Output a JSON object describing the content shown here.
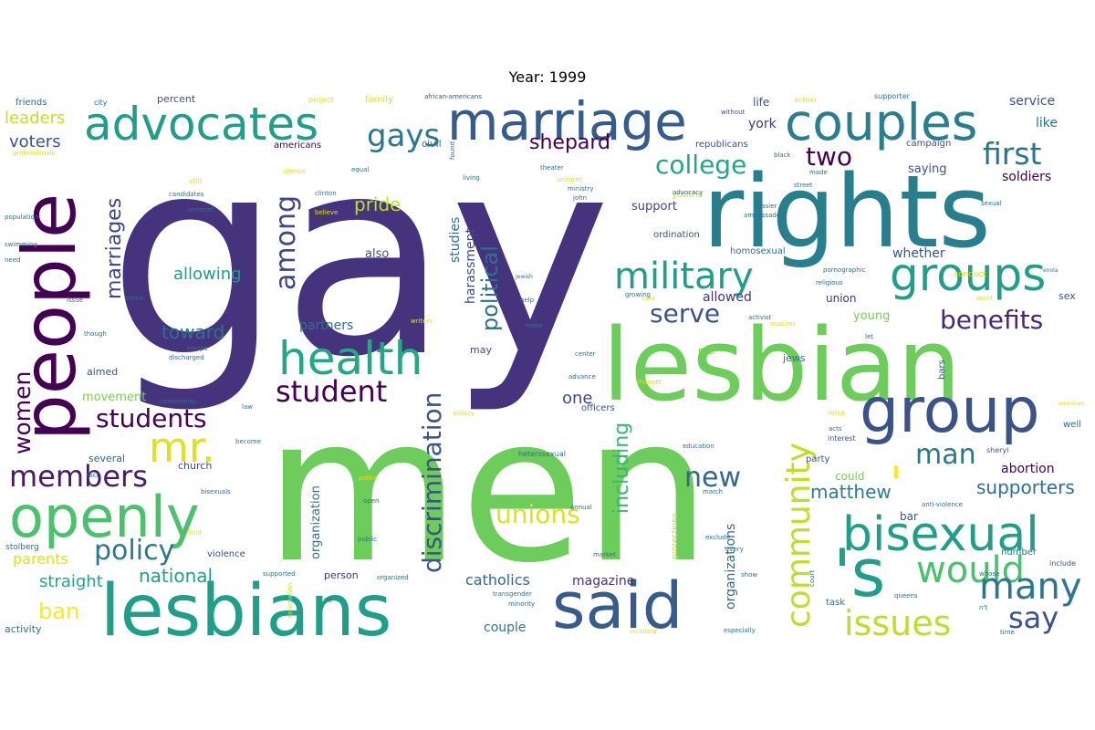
{
  "figure": {
    "title": "Year: 1999"
  },
  "word_cloud": {
    "words": [
      {
        "text": "gay",
        "color": "#46337e"
      },
      {
        "text": "men",
        "color": "#6ccd5a"
      },
      {
        "text": "rights",
        "color": "#277f8e"
      },
      {
        "text": "lesbian",
        "color": "#6ccd5a"
      },
      {
        "text": "people",
        "color": "#440154"
      },
      {
        "text": "lesbians",
        "color": "#1f9e89"
      },
      {
        "text": "marriage",
        "color": "#365c8d"
      },
      {
        "text": "couples",
        "color": "#277f8e"
      },
      {
        "text": "advocates",
        "color": "#1f9e89"
      },
      {
        "text": "said",
        "color": "#365c8d"
      },
      {
        "text": "group",
        "color": "#3b528b"
      },
      {
        "text": "openly",
        "color": "#4ac16d"
      },
      {
        "text": "health",
        "color": "#22a884"
      },
      {
        "text": "'s",
        "color": "#1f9e89"
      },
      {
        "text": "bisexual",
        "color": "#1f9e89"
      },
      {
        "text": "groups",
        "color": "#1f9e89"
      },
      {
        "text": "military",
        "color": "#1f9e89"
      },
      {
        "text": "community",
        "color": "#bddf26"
      },
      {
        "text": "mr.",
        "color": "#dde318"
      },
      {
        "text": "'",
        "color": "#fde725"
      },
      {
        "text": "gays",
        "color": "#2a788e"
      },
      {
        "text": "student",
        "color": "#440154"
      },
      {
        "text": "members",
        "color": "#481a6c"
      },
      {
        "text": "would",
        "color": "#4ac16d"
      },
      {
        "text": "many",
        "color": "#2a788e"
      },
      {
        "text": "issues",
        "color": "#bddf26"
      },
      {
        "text": "first",
        "color": "#2c718e"
      },
      {
        "text": "college",
        "color": "#22a884"
      },
      {
        "text": "policy",
        "color": "#2a788e"
      },
      {
        "text": "among",
        "color": "#404688"
      },
      {
        "text": "discrimination",
        "color": "#3b528b"
      },
      {
        "text": "new",
        "color": "#31688e"
      },
      {
        "text": "students",
        "color": "#440154"
      },
      {
        "text": "women",
        "color": "#440154"
      },
      {
        "text": "marriages",
        "color": "#414487"
      },
      {
        "text": "say",
        "color": "#3b528b"
      },
      {
        "text": "benefits",
        "color": "#482878"
      },
      {
        "text": "serve",
        "color": "#3b528b"
      },
      {
        "text": "man",
        "color": "#2a788e"
      },
      {
        "text": "two",
        "color": "#440154"
      },
      {
        "text": "unions",
        "color": "#dde318"
      },
      {
        "text": "political",
        "color": "#2c718e"
      },
      {
        "text": "including",
        "color": "#35b779"
      },
      {
        "text": "shepard",
        "color": "#440154"
      },
      {
        "text": "supporters",
        "color": "#2c718e"
      },
      {
        "text": "matthew",
        "color": "#277f8e"
      },
      {
        "text": "ban",
        "color": "#fde725"
      },
      {
        "text": "pride",
        "color": "#bddf26"
      },
      {
        "text": "toward",
        "color": "#2c718e"
      },
      {
        "text": "national",
        "color": "#1fa187"
      },
      {
        "text": "straight",
        "color": "#22a884"
      },
      {
        "text": "allowing",
        "color": "#1f9e89"
      },
      {
        "text": "leaders",
        "color": "#c8e020"
      },
      {
        "text": "voters",
        "color": "#3b528b"
      },
      {
        "text": "catholics",
        "color": "#31688e"
      },
      {
        "text": "parents",
        "color": "#dde318"
      },
      {
        "text": "one",
        "color": "#3e4a89"
      },
      {
        "text": "studies",
        "color": "#2c728e"
      },
      {
        "text": "harassment",
        "color": "#3e4a89"
      },
      {
        "text": "abortion",
        "color": "#440154"
      },
      {
        "text": "organizations",
        "color": "#31688e"
      },
      {
        "text": "organization",
        "color": "#2c728e"
      },
      {
        "text": "magazine",
        "color": "#46337e"
      },
      {
        "text": "partners",
        "color": "#2c728e"
      },
      {
        "text": "allowed",
        "color": "#46337e"
      },
      {
        "text": "couple",
        "color": "#2a788e"
      },
      {
        "text": "movement",
        "color": "#7ad151"
      },
      {
        "text": "whether",
        "color": "#3b528b"
      },
      {
        "text": "service",
        "color": "#3b528b"
      },
      {
        "text": "york",
        "color": "#46337e"
      },
      {
        "text": "like",
        "color": "#2c728e"
      },
      {
        "text": "soldiers",
        "color": "#440154"
      },
      {
        "text": "saying",
        "color": "#3b528b"
      },
      {
        "text": "support",
        "color": "#404688"
      },
      {
        "text": "also",
        "color": "#3b528b"
      },
      {
        "text": "young",
        "color": "#7ad151"
      },
      {
        "text": "union",
        "color": "#46337e"
      },
      {
        "text": "could",
        "color": "#7ad151"
      },
      {
        "text": "bar",
        "color": "#3b528b"
      },
      {
        "text": "activity",
        "color": "#2c728e"
      },
      {
        "text": "aimed",
        "color": "#3b528b"
      },
      {
        "text": "several",
        "color": "#31688e"
      },
      {
        "text": "church",
        "color": "#3b528b"
      },
      {
        "text": "percent",
        "color": "#3b528b"
      },
      {
        "text": "friends",
        "color": "#2c728e"
      },
      {
        "text": "civil",
        "color": "#2c728e"
      },
      {
        "text": "may",
        "color": "#3b528b"
      },
      {
        "text": "americans",
        "color": "#440154"
      },
      {
        "text": "life",
        "color": "#3b528b"
      },
      {
        "text": "ms.",
        "color": "#7ad151"
      },
      {
        "text": "jews",
        "color": "#2c718e"
      },
      {
        "text": "sex",
        "color": "#3b528b"
      },
      {
        "text": "task",
        "color": "#2c728e"
      },
      {
        "text": "party",
        "color": "#3b528b"
      },
      {
        "text": "number",
        "color": "#2c728e"
      },
      {
        "text": "well",
        "color": "#31688e"
      },
      {
        "text": "bars",
        "color": "#3b528b"
      },
      {
        "text": "officers",
        "color": "#3b528b"
      },
      {
        "text": "person",
        "color": "#46337e"
      },
      {
        "text": "republicans",
        "color": "#3b528b"
      },
      {
        "text": "campaign",
        "color": "#3b528b"
      },
      {
        "text": "ordination",
        "color": "#3b528b"
      },
      {
        "text": "homosexual",
        "color": "#2c728e"
      },
      {
        "text": "youths",
        "color": "#dde318"
      },
      {
        "text": "conduct",
        "color": "#dde318"
      },
      {
        "text": "heterosexual",
        "color": "#2c728e"
      },
      {
        "text": "family",
        "color": "#dde318"
      },
      {
        "text": "project",
        "color": "#dde318"
      },
      {
        "text": "action",
        "color": "#dde318"
      },
      {
        "text": "sheryl",
        "color": "#3b528b"
      },
      {
        "text": "interest",
        "color": "#3b528b"
      },
      {
        "text": "protections",
        "color": "#c8e020"
      },
      {
        "text": "include",
        "color": "#3b528b"
      },
      {
        "text": "fund",
        "color": "#dde318"
      },
      {
        "text": "stolberg",
        "color": "#2c728e"
      },
      {
        "text": "violence",
        "color": "#3b528b"
      },
      {
        "text": "city",
        "color": "#2c728e"
      },
      {
        "text": "supporter",
        "color": "#2c728e"
      },
      {
        "text": "without",
        "color": "#3b528b"
      },
      {
        "text": "african-americans",
        "color": "#3b528b"
      },
      {
        "text": "professionals",
        "color": "#dde318"
      },
      {
        "text": "still",
        "color": "#dde318"
      },
      {
        "text": "candidates",
        "color": "#2c728e"
      },
      {
        "text": "vermont",
        "color": "#2c728e"
      },
      {
        "text": "clinton",
        "color": "#2c728e"
      },
      {
        "text": "believe",
        "color": "#dde318"
      },
      {
        "text": "population",
        "color": "#2c728e"
      },
      {
        "text": "swimming",
        "color": "#2c728e"
      },
      {
        "text": "need",
        "color": "#2c728e"
      },
      {
        "text": "issue",
        "color": "#2c728e"
      },
      {
        "text": "come",
        "color": "#2c728e"
      },
      {
        "text": "though",
        "color": "#2c728e"
      },
      {
        "text": "writers",
        "color": "#dde318"
      },
      {
        "text": "troops",
        "color": "#2c728e"
      },
      {
        "text": "discharged",
        "color": "#2c728e"
      },
      {
        "text": "ceremonies",
        "color": "#2c728e"
      },
      {
        "text": "law",
        "color": "#2c728e"
      },
      {
        "text": "fact",
        "color": "#2c728e"
      },
      {
        "text": "become",
        "color": "#2c728e"
      },
      {
        "text": "bisexuals",
        "color": "#2c728e"
      },
      {
        "text": "police",
        "color": "#dde318"
      },
      {
        "text": "open",
        "color": "#2c728e"
      },
      {
        "text": "public",
        "color": "#2c728e"
      },
      {
        "text": "supported",
        "color": "#2c728e"
      },
      {
        "text": "organized",
        "color": "#2c728e"
      },
      {
        "text": "'re",
        "color": "#2c728e"
      },
      {
        "text": "association",
        "color": "#dde318"
      },
      {
        "text": "transgender",
        "color": "#2c728e"
      },
      {
        "text": "minority",
        "color": "#2c728e"
      },
      {
        "text": "market",
        "color": "#2c728e"
      },
      {
        "text": "included",
        "color": "#dde318"
      },
      {
        "text": "especially",
        "color": "#2c728e"
      },
      {
        "text": "show",
        "color": "#2c728e"
      },
      {
        "text": "court",
        "color": "#2c728e"
      },
      {
        "text": "queens",
        "color": "#2c728e"
      },
      {
        "text": "n't",
        "color": "#2c728e"
      },
      {
        "text": "whose",
        "color": "#2c728e"
      },
      {
        "text": "time",
        "color": "#2c728e"
      },
      {
        "text": "every",
        "color": "#2c728e"
      },
      {
        "text": "exclude",
        "color": "#2c728e"
      },
      {
        "text": "march",
        "color": "#2c728e"
      },
      {
        "text": "annual",
        "color": "#2c728e"
      },
      {
        "text": "education",
        "color": "#2c728e"
      },
      {
        "text": "anti-violence",
        "color": "#2c728e"
      },
      {
        "text": "acts",
        "color": "#2c728e"
      },
      {
        "text": "force",
        "color": "#dde318"
      },
      {
        "text": "thought",
        "color": "#dde318"
      },
      {
        "text": "advance",
        "color": "#2c728e"
      },
      {
        "text": "center",
        "color": "#2c728e"
      },
      {
        "text": "victory",
        "color": "#dde318"
      },
      {
        "text": "american",
        "color": "#dde318"
      },
      {
        "text": "let",
        "color": "#2c728e"
      },
      {
        "text": "muslims",
        "color": "#dde318"
      },
      {
        "text": "activist",
        "color": "#2c728e"
      },
      {
        "text": "care",
        "color": "#dde318"
      },
      {
        "text": "growing",
        "color": "#2c728e"
      },
      {
        "text": "make",
        "color": "#2c728e"
      },
      {
        "text": "help",
        "color": "#2c728e"
      },
      {
        "text": "jewish",
        "color": "#2c728e"
      },
      {
        "text": "word",
        "color": "#dde318"
      },
      {
        "text": "religious",
        "color": "#2c728e"
      },
      {
        "text": "pornographic",
        "color": "#2c728e"
      },
      {
        "text": "enola",
        "color": "#2c728e"
      },
      {
        "text": "sexual",
        "color": "#2c728e"
      },
      {
        "text": "street",
        "color": "#2c728e"
      },
      {
        "text": "easier",
        "color": "#2c728e"
      },
      {
        "text": "ambassador",
        "color": "#2c728e"
      },
      {
        "text": "advocacy",
        "color": "#2c728e"
      },
      {
        "text": "made",
        "color": "#2c728e"
      },
      {
        "text": "black",
        "color": "#2c728e"
      },
      {
        "text": "uniform",
        "color": "#dde318"
      },
      {
        "text": "ministry",
        "color": "#2c728e"
      },
      {
        "text": "john",
        "color": "#2c728e"
      },
      {
        "text": "theater",
        "color": "#2c728e"
      },
      {
        "text": "found",
        "color": "#2c728e"
      },
      {
        "text": "living",
        "color": "#2c728e"
      },
      {
        "text": "equal",
        "color": "#2c728e"
      },
      {
        "text": "silence",
        "color": "#dde318"
      }
    ]
  }
}
